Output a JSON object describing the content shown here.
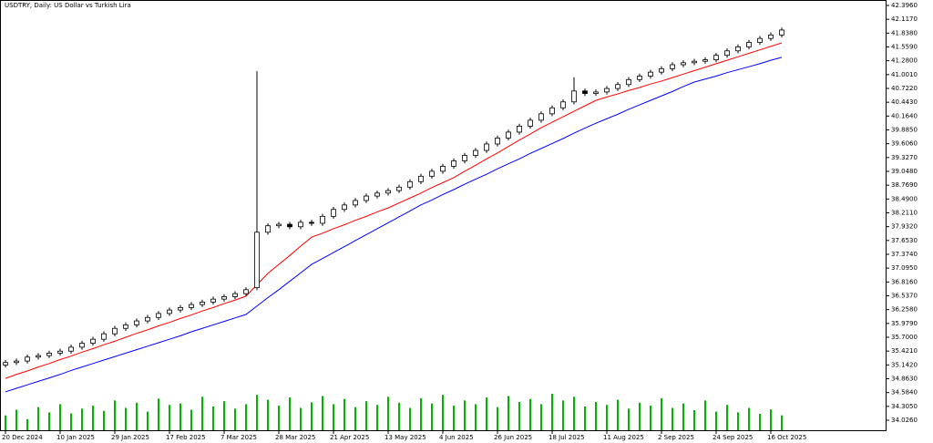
{
  "chart_data": {
    "type": "candlestick",
    "title": "USDTRY, Daily:  US Dollar vs Turkish Lira",
    "ylim": [
      33.824,
      42.506
    ],
    "yticks": [
      {
        "value": 42.396,
        "label": "42.3960"
      },
      {
        "value": 42.117,
        "label": "42.1170"
      },
      {
        "value": 41.838,
        "label": "41.8380"
      },
      {
        "value": 41.559,
        "label": "41.5590"
      },
      {
        "value": 41.28,
        "label": "41.2800"
      },
      {
        "value": 41.001,
        "label": "41.0010"
      },
      {
        "value": 40.722,
        "label": "40.7220"
      },
      {
        "value": 40.443,
        "label": "40.4430"
      },
      {
        "value": 40.164,
        "label": "40.1640"
      },
      {
        "value": 39.885,
        "label": "39.8850"
      },
      {
        "value": 39.606,
        "label": "39.6060"
      },
      {
        "value": 39.327,
        "label": "39.3270"
      },
      {
        "value": 39.048,
        "label": "39.0480"
      },
      {
        "value": 38.769,
        "label": "38.7690"
      },
      {
        "value": 38.49,
        "label": "38.4900"
      },
      {
        "value": 38.211,
        "label": "38.2110"
      },
      {
        "value": 37.932,
        "label": "37.9320"
      },
      {
        "value": 37.653,
        "label": "37.6530"
      },
      {
        "value": 37.374,
        "label": "37.3740"
      },
      {
        "value": 37.095,
        "label": "37.0950"
      },
      {
        "value": 36.816,
        "label": "36.8160"
      },
      {
        "value": 36.537,
        "label": "36.5370"
      },
      {
        "value": 36.258,
        "label": "36.2580"
      },
      {
        "value": 35.979,
        "label": "35.9790"
      },
      {
        "value": 35.7,
        "label": "35.7000"
      },
      {
        "value": 35.421,
        "label": "35.4210"
      },
      {
        "value": 35.142,
        "label": "35.1420"
      },
      {
        "value": 34.863,
        "label": "34.8630"
      },
      {
        "value": 34.584,
        "label": "34.5840"
      },
      {
        "value": 34.305,
        "label": "34.3050"
      },
      {
        "value": 34.026,
        "label": "34.0260"
      }
    ],
    "xticks": [
      {
        "value": 0,
        "label": "20 Dec 2024"
      },
      {
        "value": 5,
        "label": "10 Jan 2025"
      },
      {
        "value": 10,
        "label": "29 Jan 2025"
      },
      {
        "value": 15,
        "label": "17 Feb 2025"
      },
      {
        "value": 20,
        "label": "7 Mar 2025"
      },
      {
        "value": 25,
        "label": "28 Mar 2025"
      },
      {
        "value": 30,
        "label": "21 Apr 2025"
      },
      {
        "value": 35,
        "label": "13 May 2025"
      },
      {
        "value": 40,
        "label": "4 Jun 2025"
      },
      {
        "value": 45,
        "label": "26 Jun 2025"
      },
      {
        "value": 50,
        "label": "18 Jul 2025"
      },
      {
        "value": 55,
        "label": "11 Aug 2025"
      },
      {
        "value": 60,
        "label": "2 Sep 2025"
      },
      {
        "value": 65,
        "label": "24 Sep 2025"
      },
      {
        "value": 70,
        "label": "16 Oct 2025"
      }
    ],
    "open": [
      35.14,
      35.19,
      35.22,
      35.3,
      35.33,
      35.38,
      35.42,
      35.5,
      35.58,
      35.66,
      35.77,
      35.88,
      35.95,
      36.03,
      36.1,
      36.18,
      36.25,
      36.3,
      36.36,
      36.41,
      36.47,
      36.52,
      36.58,
      36.7,
      37.82,
      37.95,
      37.98,
      37.93,
      38.02,
      38.0,
      38.14,
      38.28,
      38.37,
      38.46,
      38.55,
      38.61,
      38.66,
      38.73,
      38.84,
      38.95,
      39.05,
      39.15,
      39.26,
      39.37,
      39.47,
      39.6,
      39.72,
      39.84,
      39.96,
      40.08,
      40.21,
      40.33,
      40.45,
      40.67,
      40.62,
      40.65,
      40.72,
      40.8,
      40.9,
      40.97,
      41.05,
      41.12,
      41.2,
      41.24,
      41.27,
      41.3,
      41.39,
      41.48,
      41.56,
      41.65,
      41.73,
      41.8
    ],
    "high": [
      35.24,
      35.27,
      35.35,
      35.38,
      35.43,
      35.47,
      35.55,
      35.63,
      35.71,
      35.82,
      35.93,
      36.0,
      36.08,
      36.15,
      36.23,
      36.3,
      36.35,
      36.41,
      36.46,
      36.52,
      36.57,
      36.63,
      36.71,
      41.07,
      38.0,
      38.03,
      38.03,
      38.07,
      38.07,
      38.19,
      38.33,
      38.42,
      38.51,
      38.6,
      38.66,
      38.71,
      38.78,
      38.89,
      39.0,
      39.1,
      39.2,
      39.31,
      39.42,
      39.52,
      39.65,
      39.77,
      39.89,
      40.01,
      40.13,
      40.26,
      40.38,
      40.5,
      40.95,
      40.72,
      40.7,
      40.77,
      40.85,
      40.95,
      41.02,
      41.1,
      41.17,
      41.25,
      41.29,
      41.32,
      41.35,
      41.44,
      41.53,
      41.61,
      41.7,
      41.78,
      41.85,
      41.95
    ],
    "low": [
      35.09,
      35.14,
      35.17,
      35.25,
      35.28,
      35.33,
      35.37,
      35.45,
      35.53,
      35.61,
      35.72,
      35.83,
      35.9,
      35.98,
      36.05,
      36.13,
      36.2,
      36.25,
      36.31,
      36.36,
      36.42,
      36.47,
      36.53,
      36.65,
      37.77,
      37.9,
      37.88,
      37.88,
      37.95,
      37.95,
      38.09,
      38.23,
      38.32,
      38.41,
      38.5,
      38.56,
      38.61,
      38.68,
      38.79,
      38.9,
      39.0,
      39.1,
      39.21,
      39.32,
      39.42,
      39.55,
      39.67,
      39.79,
      39.91,
      40.03,
      40.16,
      40.28,
      40.4,
      40.57,
      40.57,
      40.6,
      40.67,
      40.75,
      40.85,
      40.92,
      41.0,
      41.07,
      41.15,
      41.19,
      41.22,
      41.25,
      41.34,
      41.43,
      41.51,
      41.6,
      41.68,
      41.75
    ],
    "close": [
      35.19,
      35.22,
      35.3,
      35.33,
      35.38,
      35.42,
      35.5,
      35.58,
      35.66,
      35.77,
      35.88,
      35.95,
      36.03,
      36.1,
      36.18,
      36.25,
      36.3,
      36.36,
      36.41,
      36.47,
      36.52,
      36.58,
      36.66,
      37.82,
      37.95,
      37.98,
      37.93,
      38.02,
      38.0,
      38.14,
      38.28,
      38.37,
      38.46,
      38.55,
      38.61,
      38.66,
      38.73,
      38.84,
      38.95,
      39.05,
      39.15,
      39.26,
      39.37,
      39.47,
      39.6,
      39.72,
      39.84,
      39.96,
      40.08,
      40.21,
      40.33,
      40.45,
      40.67,
      40.62,
      40.65,
      40.72,
      40.8,
      40.9,
      40.97,
      41.05,
      41.12,
      41.2,
      41.24,
      41.27,
      41.3,
      41.39,
      41.48,
      41.56,
      41.65,
      41.73,
      41.8,
      41.9
    ],
    "volume": [
      40,
      55,
      30,
      62,
      48,
      70,
      45,
      58,
      66,
      52,
      80,
      60,
      74,
      50,
      85,
      68,
      72,
      55,
      90,
      64,
      78,
      58,
      70,
      95,
      82,
      66,
      88,
      60,
      75,
      92,
      70,
      84,
      62,
      78,
      68,
      90,
      74,
      60,
      86,
      72,
      95,
      66,
      80,
      70,
      88,
      62,
      92,
      76,
      84,
      70,
      98,
      80,
      90,
      64,
      76,
      68,
      82,
      58,
      74,
      66,
      86,
      60,
      72,
      54,
      80,
      50,
      68,
      48,
      60,
      44,
      56,
      40
    ],
    "volume_color": "#00b400",
    "candle_up_color": "#ffffff",
    "candle_down_color": "#000000",
    "series": [
      {
        "color": "#ff0000",
        "values": [
          34.87,
          34.95,
          35.02,
          35.1,
          35.17,
          35.25,
          35.32,
          35.4,
          35.47,
          35.55,
          35.62,
          35.7,
          35.78,
          35.85,
          35.93,
          36.0,
          36.08,
          36.15,
          36.23,
          36.3,
          36.38,
          36.45,
          36.53,
          36.76,
          36.99,
          37.17,
          37.35,
          37.54,
          37.72,
          37.8,
          37.89,
          37.97,
          38.06,
          38.14,
          38.23,
          38.31,
          38.41,
          38.51,
          38.61,
          38.72,
          38.82,
          38.92,
          39.05,
          39.17,
          39.3,
          39.42,
          39.55,
          39.68,
          39.8,
          39.93,
          40.04,
          40.15,
          40.26,
          40.37,
          40.48,
          40.55,
          40.61,
          40.68,
          40.74,
          40.81,
          40.87,
          40.94,
          41.01,
          41.08,
          41.15,
          41.22,
          41.29,
          41.36,
          41.43,
          41.5,
          41.57,
          41.64
        ]
      },
      {
        "color": "#0000ff",
        "values": [
          34.6,
          34.67,
          34.74,
          34.81,
          34.88,
          34.95,
          35.03,
          35.1,
          35.17,
          35.24,
          35.31,
          35.38,
          35.45,
          35.52,
          35.59,
          35.66,
          35.73,
          35.81,
          35.88,
          35.95,
          36.02,
          36.09,
          36.16,
          36.33,
          36.5,
          36.66,
          36.83,
          37.0,
          37.17,
          37.29,
          37.41,
          37.53,
          37.65,
          37.77,
          37.89,
          38.01,
          38.13,
          38.25,
          38.37,
          38.47,
          38.58,
          38.68,
          38.79,
          38.89,
          38.99,
          39.1,
          39.2,
          39.3,
          39.41,
          39.51,
          39.61,
          39.71,
          39.82,
          39.92,
          40.02,
          40.11,
          40.2,
          40.3,
          40.39,
          40.48,
          40.57,
          40.66,
          40.76,
          40.85,
          40.91,
          40.97,
          41.04,
          41.1,
          41.16,
          41.22,
          41.29,
          41.35
        ]
      }
    ]
  }
}
